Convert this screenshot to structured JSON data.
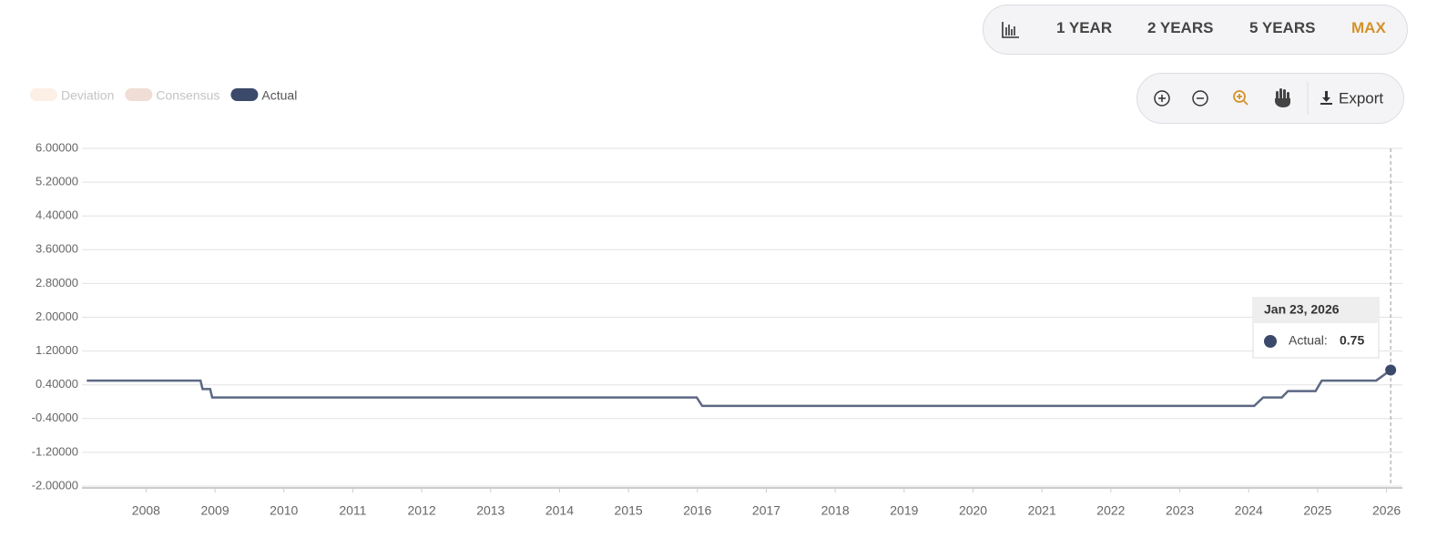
{
  "toolbar": {
    "ranges": [
      "1 YEAR",
      "2 YEARS",
      "5 YEARS",
      "MAX"
    ],
    "active_range": 3,
    "export": "Export"
  },
  "chart_data": {
    "type": "line",
    "series": [
      {
        "name": "Actual",
        "color": "#3b4a6b",
        "x": [
          2007.14,
          2008.79,
          2008.82,
          2008.93,
          2008.96,
          2015.99,
          2016.07,
          2024.08,
          2024.21,
          2024.48,
          2024.57,
          2024.97,
          2025.06,
          2025.85,
          2026.06
        ],
        "values": [
          0.5,
          0.5,
          0.3,
          0.3,
          0.1,
          0.1,
          -0.1,
          -0.1,
          0.1,
          0.1,
          0.25,
          0.25,
          0.5,
          0.5,
          0.75
        ]
      }
    ],
    "hidden_series": [
      {
        "name": "Deviation",
        "color": "#fcefe5"
      },
      {
        "name": "Consensus",
        "color": "#f0ddd5"
      }
    ],
    "xlim": [
      2007.07,
      2026.23
    ],
    "xticks": [
      2008,
      2009,
      2010,
      2011,
      2012,
      2013,
      2014,
      2015,
      2016,
      2017,
      2018,
      2019,
      2020,
      2021,
      2022,
      2023,
      2024,
      2025,
      2026
    ],
    "ylim": [
      -2,
      6
    ],
    "yticks": [
      {
        "value": 6,
        "label": "6.00000"
      },
      {
        "value": 5.2,
        "label": "5.20000"
      },
      {
        "value": 4.4,
        "label": "4.40000"
      },
      {
        "value": 3.6,
        "label": "3.60000"
      },
      {
        "value": 2.8,
        "label": "2.80000"
      },
      {
        "value": 2,
        "label": "2.00000"
      },
      {
        "value": 1.2,
        "label": "1.20000"
      },
      {
        "value": 0.4,
        "label": "0.40000"
      },
      {
        "value": -0.4,
        "label": "-0.40000"
      },
      {
        "value": -1.2,
        "label": "-1.20000"
      },
      {
        "value": -2,
        "label": "-2.00000"
      }
    ],
    "grid": true,
    "tooltip": {
      "date": "Jan 23, 2026",
      "label": "Actual:",
      "value": 0.75
    }
  }
}
